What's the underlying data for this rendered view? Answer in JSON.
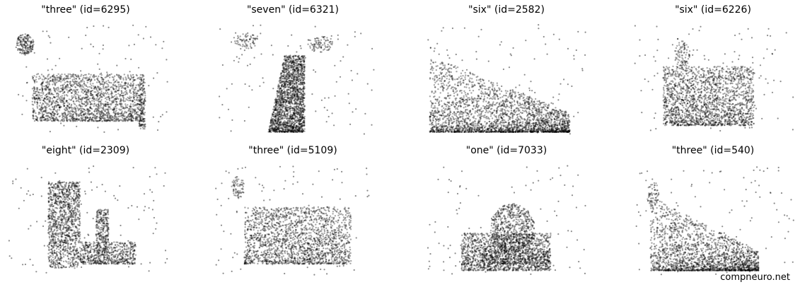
{
  "figure": {
    "watermark": "compneuro.net",
    "point_color": "#000000"
  },
  "chart_data": [
    {
      "type": "scatter",
      "title": "\"three\" (id=6295)",
      "xlabel": "",
      "ylabel": "",
      "axes": "off",
      "grid": false,
      "xlim": [
        0,
        1
      ],
      "ylim": [
        0,
        1
      ],
      "clusters": [
        {
          "x": [
            0.15,
            0.85
          ],
          "y": [
            0.12,
            0.55
          ],
          "n": 1900,
          "shape": "band"
        },
        {
          "x": [
            0.05,
            0.16
          ],
          "y": [
            0.72,
            0.92
          ],
          "n": 180,
          "shape": "blob"
        },
        {
          "x": [
            0.82,
            0.86
          ],
          "y": [
            0.05,
            0.52
          ],
          "n": 140,
          "shape": "band"
        }
      ],
      "background_n": 110
    },
    {
      "type": "scatter",
      "title": "\"seven\" (id=6321)",
      "xlabel": "",
      "ylabel": "",
      "axes": "off",
      "grid": false,
      "xlim": [
        0,
        1
      ],
      "ylim": [
        0,
        1
      ],
      "clusters": [
        {
          "x": [
            0.33,
            0.56
          ],
          "y": [
            0.02,
            0.72
          ],
          "n": 1900,
          "shape": "trapezoid"
        },
        {
          "x": [
            0.12,
            0.28
          ],
          "y": [
            0.78,
            0.92
          ],
          "n": 70,
          "shape": "blob"
        },
        {
          "x": [
            0.58,
            0.74
          ],
          "y": [
            0.75,
            0.9
          ],
          "n": 80,
          "shape": "blob"
        }
      ],
      "background_n": 110
    },
    {
      "type": "scatter",
      "title": "\"six\" (id=2582)",
      "xlabel": "",
      "ylabel": "",
      "axes": "off",
      "grid": false,
      "xlim": [
        0,
        1
      ],
      "ylim": [
        0,
        1
      ],
      "clusters": [
        {
          "x": [
            0.02,
            0.9
          ],
          "y": [
            0.02,
            0.72
          ],
          "n": 2600,
          "shape": "ramp"
        }
      ],
      "background_n": 110
    },
    {
      "type": "scatter",
      "title": "\"six\" (id=6226)",
      "xlabel": "",
      "ylabel": "",
      "axes": "off",
      "grid": false,
      "xlim": [
        0,
        1
      ],
      "ylim": [
        0,
        1
      ],
      "clusters": [
        {
          "x": [
            0.18,
            0.75
          ],
          "y": [
            0.08,
            0.62
          ],
          "n": 1900,
          "shape": "band"
        },
        {
          "x": [
            0.25,
            0.35
          ],
          "y": [
            0.6,
            0.85
          ],
          "n": 90,
          "shape": "blob"
        }
      ],
      "background_n": 110
    },
    {
      "type": "scatter",
      "title": "\"eight\" (id=2309)",
      "xlabel": "",
      "ylabel": "",
      "axes": "off",
      "grid": false,
      "xlim": [
        0,
        1
      ],
      "ylim": [
        0,
        1
      ],
      "clusters": [
        {
          "x": [
            0.25,
            0.45
          ],
          "y": [
            0.06,
            0.85
          ],
          "n": 1200,
          "shape": "column"
        },
        {
          "x": [
            0.45,
            0.8
          ],
          "y": [
            0.1,
            0.3
          ],
          "n": 600,
          "shape": "band"
        },
        {
          "x": [
            0.55,
            0.63
          ],
          "y": [
            0.2,
            0.6
          ],
          "n": 280,
          "shape": "column"
        }
      ],
      "background_n": 110
    },
    {
      "type": "scatter",
      "title": "\"three\" (id=5109)",
      "xlabel": "",
      "ylabel": "",
      "axes": "off",
      "grid": false,
      "xlim": [
        0,
        1
      ],
      "ylim": [
        0,
        1
      ],
      "clusters": [
        {
          "x": [
            0.18,
            0.85
          ],
          "y": [
            0.1,
            0.62
          ],
          "n": 1900,
          "shape": "band"
        },
        {
          "x": [
            0.1,
            0.18
          ],
          "y": [
            0.7,
            0.9
          ],
          "n": 70,
          "shape": "blob"
        }
      ],
      "background_n": 110
    },
    {
      "type": "scatter",
      "title": "\"one\" (id=7033)",
      "xlabel": "",
      "ylabel": "",
      "axes": "off",
      "grid": false,
      "xlim": [
        0,
        1
      ],
      "ylim": [
        0,
        1
      ],
      "clusters": [
        {
          "x": [
            0.22,
            0.78
          ],
          "y": [
            0.04,
            0.38
          ],
          "n": 1500,
          "shape": "band"
        },
        {
          "x": [
            0.4,
            0.68
          ],
          "y": [
            0.2,
            0.65
          ],
          "n": 650,
          "shape": "blob"
        },
        {
          "x": [
            0.35,
            0.78
          ],
          "y": [
            0.1,
            0.24
          ],
          "n": 300,
          "shape": "band"
        }
      ],
      "background_n": 110
    },
    {
      "type": "scatter",
      "title": "\"three\" (id=540)",
      "xlabel": "",
      "ylabel": "",
      "axes": "off",
      "grid": false,
      "xlim": [
        0,
        1
      ],
      "ylim": [
        0,
        1
      ],
      "clusters": [
        {
          "x": [
            0.1,
            0.78
          ],
          "y": [
            0.04,
            0.72
          ],
          "n": 2000,
          "shape": "ramp"
        },
        {
          "x": [
            0.08,
            0.16
          ],
          "y": [
            0.6,
            0.85
          ],
          "n": 60,
          "shape": "blob"
        }
      ],
      "background_n": 110
    }
  ]
}
